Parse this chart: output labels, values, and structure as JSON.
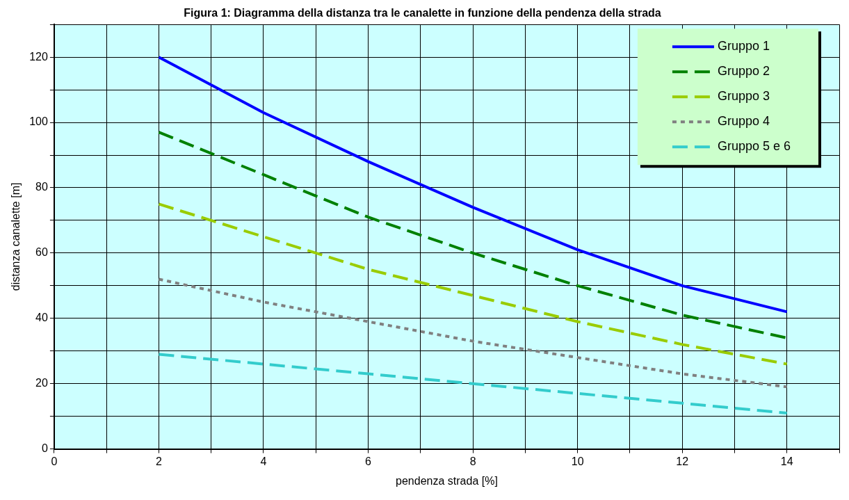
{
  "chart_data": {
    "type": "line",
    "title": "Figura 1: Diagramma della distanza tra le canalette in funzione della pendenza della strada",
    "xlabel": "pendenza strada [%]",
    "ylabel": "distanza canalette [m]",
    "x": [
      2,
      4,
      6,
      8,
      10,
      12,
      14
    ],
    "series": [
      {
        "name": "Gruppo 1",
        "color": "#0000ff",
        "line_style": "solid",
        "values": [
          120,
          103,
          88,
          74,
          61,
          50,
          42
        ]
      },
      {
        "name": "Gruppo 2",
        "color": "#008000",
        "line_style": "dashed",
        "values": [
          97,
          84,
          71,
          60,
          50,
          41,
          34
        ]
      },
      {
        "name": "Gruppo 3",
        "color": "#99cc00",
        "line_style": "dashed",
        "values": [
          75,
          65,
          55,
          47,
          39,
          32,
          26
        ]
      },
      {
        "name": "Gruppo 4",
        "color": "#808080",
        "line_style": "dotted",
        "values": [
          52,
          45,
          39,
          33,
          28,
          23,
          19
        ]
      },
      {
        "name": "Gruppo 5 e 6",
        "color": "#33cccc",
        "line_style": "dashed",
        "values": [
          29,
          26,
          23,
          20,
          17,
          14,
          11
        ]
      }
    ],
    "xlim": [
      0,
      15
    ],
    "xticks": [
      0,
      {
        "value": 1,
        "label": null
      },
      2,
      {
        "value": 3,
        "label": null
      },
      4,
      {
        "value": 5,
        "label": null
      },
      6,
      {
        "value": 7,
        "label": null
      },
      8,
      {
        "value": 9,
        "label": null
      },
      10,
      {
        "value": 11,
        "label": null
      },
      12,
      {
        "value": 13,
        "label": null
      },
      14,
      {
        "value": 15,
        "label": null
      }
    ],
    "ylim": [
      0,
      130
    ],
    "yticks": [
      0,
      {
        "value": 10,
        "label": null
      },
      20,
      {
        "value": 30,
        "label": null
      },
      40,
      {
        "value": 50,
        "label": null
      },
      60,
      {
        "value": 70,
        "label": null
      },
      80,
      {
        "value": 90,
        "label": null
      },
      100,
      {
        "value": 110,
        "label": null
      },
      120,
      {
        "value": 130,
        "label": null
      }
    ],
    "grid": true,
    "legend": "top right",
    "marker": "none"
  }
}
